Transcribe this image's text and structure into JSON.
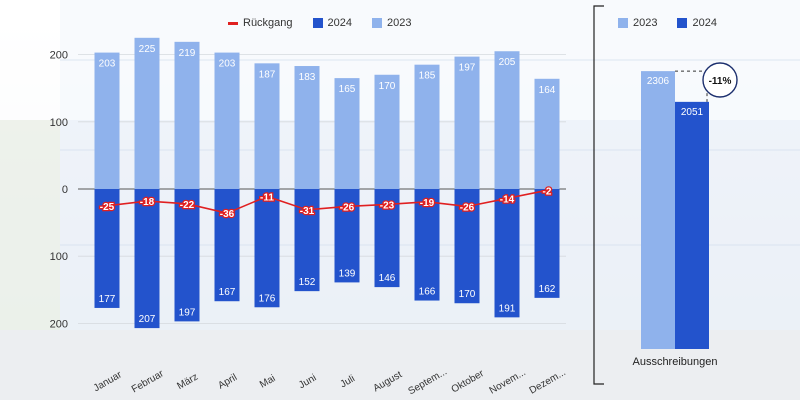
{
  "legend_main": [
    {
      "label": "Rückgang",
      "color": "#e02020",
      "kind": "line"
    },
    {
      "label": "2024",
      "color": "#2353cc",
      "kind": "box"
    },
    {
      "label": "2023",
      "color": "#8fb2ec",
      "kind": "box"
    }
  ],
  "legend_side": [
    {
      "label": "2023",
      "color": "#8fb2ec",
      "kind": "box"
    },
    {
      "label": "2024",
      "color": "#2353cc",
      "kind": "box"
    }
  ],
  "colors": {
    "y2023": "#8fb2ec",
    "y2024": "#2353cc",
    "decline": "#e02020"
  },
  "chart_data": [
    {
      "type": "bar",
      "categories": [
        "Januar",
        "Februar",
        "März",
        "April",
        "Mai",
        "Juni",
        "Juli",
        "August",
        "Septem...",
        "Oktober",
        "Novem...",
        "Dezem..."
      ],
      "series": [
        {
          "name": "2023",
          "values": [
            203,
            225,
            219,
            203,
            187,
            183,
            165,
            170,
            185,
            197,
            205,
            164
          ]
        },
        {
          "name": "2024",
          "values": [
            177,
            207,
            197,
            167,
            176,
            152,
            139,
            146,
            166,
            170,
            191,
            162
          ]
        },
        {
          "name": "Rückgang",
          "values": [
            -25,
            -18,
            -22,
            -36,
            -11,
            -31,
            -26,
            -23,
            -19,
            -26,
            -14,
            -2
          ]
        }
      ],
      "yticks": [
        "200",
        "100",
        "0",
        "100",
        "200"
      ],
      "ylim": [
        -200,
        200
      ],
      "grid": true,
      "legend": "top"
    },
    {
      "type": "bar",
      "categories": [
        "Ausschreibungen"
      ],
      "series": [
        {
          "name": "2023",
          "values": [
            2306
          ]
        },
        {
          "name": "2024",
          "values": [
            2051
          ]
        }
      ],
      "annotation": "-11%",
      "legend": "top"
    }
  ]
}
